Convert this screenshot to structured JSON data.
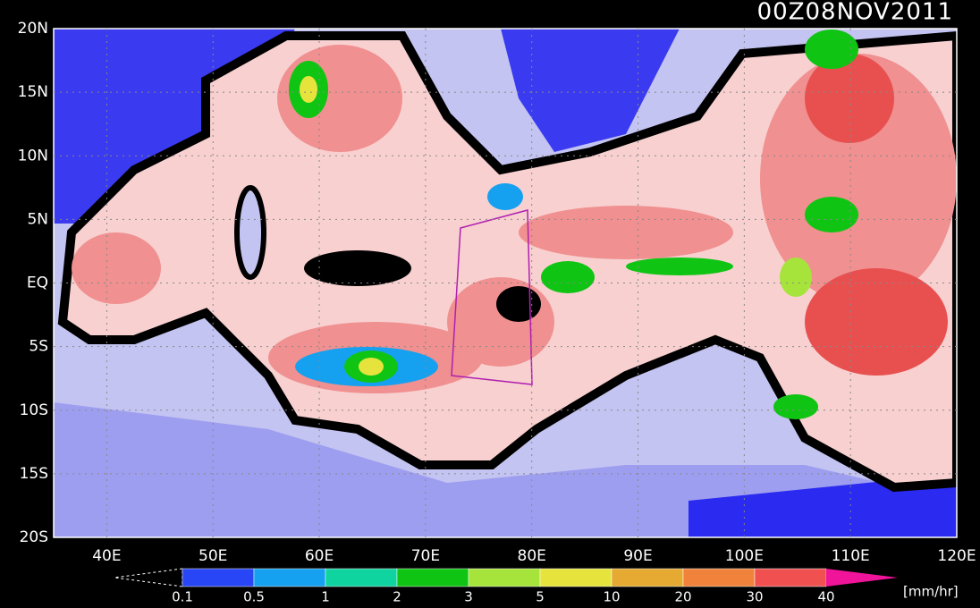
{
  "title": "00Z08NOV2011",
  "map": {
    "lat_labels": [
      "20N",
      "15N",
      "10N",
      "5N",
      "EQ",
      "5S",
      "10S",
      "15S",
      "20S"
    ],
    "lon_labels": [
      "40E",
      "50E",
      "60E",
      "70E",
      "80E",
      "90E",
      "100E",
      "110E",
      "120E"
    ]
  },
  "colorbar": {
    "levels": [
      0.1,
      0.5,
      1,
      2,
      3,
      5,
      10,
      20,
      30,
      40
    ],
    "colors": [
      "#2846f5",
      "#16a0f0",
      "#10d4a0",
      "#10c414",
      "#a6e43c",
      "#e6e43c",
      "#e6aa32",
      "#f0823c",
      "#f05050"
    ],
    "over_color": "#f0149a",
    "unit": "[mm/hr]"
  }
}
